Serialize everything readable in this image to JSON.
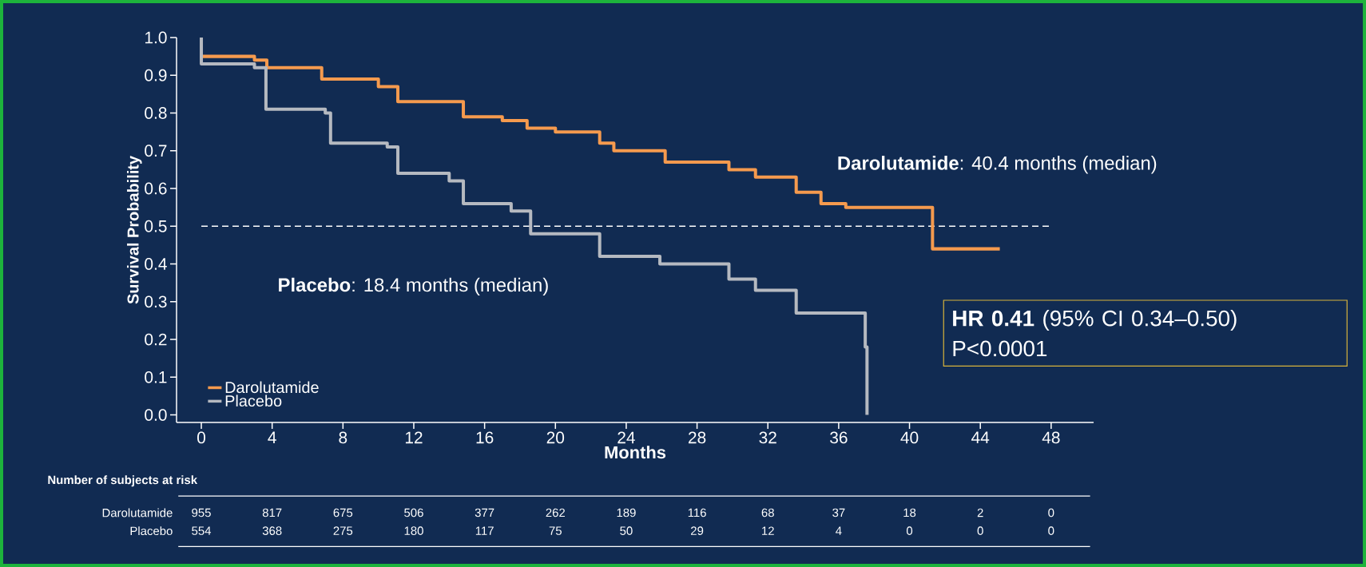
{
  "chart_data": {
    "type": "step",
    "xlabel": "Months",
    "ylabel": "Survival Probability",
    "xlim": [
      -1.4,
      50.4
    ],
    "ylim": [
      -0.02,
      1.0
    ],
    "xticks": [
      0,
      4,
      8,
      12,
      16,
      20,
      24,
      28,
      32,
      36,
      40,
      44,
      48
    ],
    "yticks": [
      {
        "value": 0,
        "label": "0.0"
      },
      {
        "value": 0.1,
        "label": "0.1"
      },
      {
        "value": 0.2,
        "label": "0.2"
      },
      {
        "value": 0.3,
        "label": "0.3"
      },
      {
        "value": 0.4,
        "label": "0.4"
      },
      {
        "value": 0.5,
        "label": "0.5"
      },
      {
        "value": 0.6,
        "label": "0.6"
      },
      {
        "value": 0.7,
        "label": "0.7"
      },
      {
        "value": 0.8,
        "label": "0.8"
      },
      {
        "value": 0.9,
        "label": "0.9"
      },
      {
        "value": 1.0,
        "label": "1.0"
      }
    ],
    "grid": false,
    "legend": "bottom left",
    "marker": "none",
    "line_style": "solid",
    "ref_lines": [
      {
        "axis": "y",
        "value": 0.5,
        "color": "#ffffff",
        "line_style": "dashed"
      }
    ],
    "series": [
      {
        "name": "Darolutamide",
        "color": "#f59a4e",
        "x": [
          0,
          3.0,
          3.7,
          6.8,
          10.0,
          11.1,
          14.8,
          17.0,
          18.4,
          20.0,
          22.5,
          23.3,
          26.2,
          29.8,
          31.3,
          33.6,
          35.0,
          36.4,
          41.3,
          45.1
        ],
        "values": [
          0.95,
          0.94,
          0.92,
          0.89,
          0.87,
          0.83,
          0.79,
          0.78,
          0.76,
          0.75,
          0.72,
          0.7,
          0.67,
          0.65,
          0.63,
          0.59,
          0.56,
          0.55,
          0.44,
          0.44
        ]
      },
      {
        "name": "Placebo",
        "color": "#b5b9c0",
        "x": [
          0,
          0,
          3.0,
          3.65,
          7.0,
          7.3,
          10.5,
          11.1,
          14.0,
          14.8,
          17.5,
          18.6,
          22.5,
          25.9,
          29.8,
          31.3,
          33.6,
          37.5,
          37.6
        ],
        "values": [
          1.0,
          0.93,
          0.92,
          0.81,
          0.8,
          0.72,
          0.71,
          0.64,
          0.62,
          0.56,
          0.54,
          0.48,
          0.42,
          0.4,
          0.36,
          0.33,
          0.27,
          0.18,
          0.0
        ]
      }
    ],
    "annotations": [
      "**Darolutamide**: 40.4 months (median)",
      "**Placebo**: 18.4 months (median)",
      "**HR 0.41** (95% CI 0.34–0.50)",
      "P<0.0001",
      "Number of subjects at risk",
      "Darolutamide",
      "Placebo",
      "955",
      "817",
      "675",
      "506",
      "377",
      "262",
      "189",
      "116",
      "68",
      "37",
      "18",
      "2",
      "0",
      "554",
      "368",
      "275",
      "180",
      "117",
      "75",
      "50",
      "29",
      "12",
      "4",
      "0",
      "0",
      "0"
    ]
  }
}
